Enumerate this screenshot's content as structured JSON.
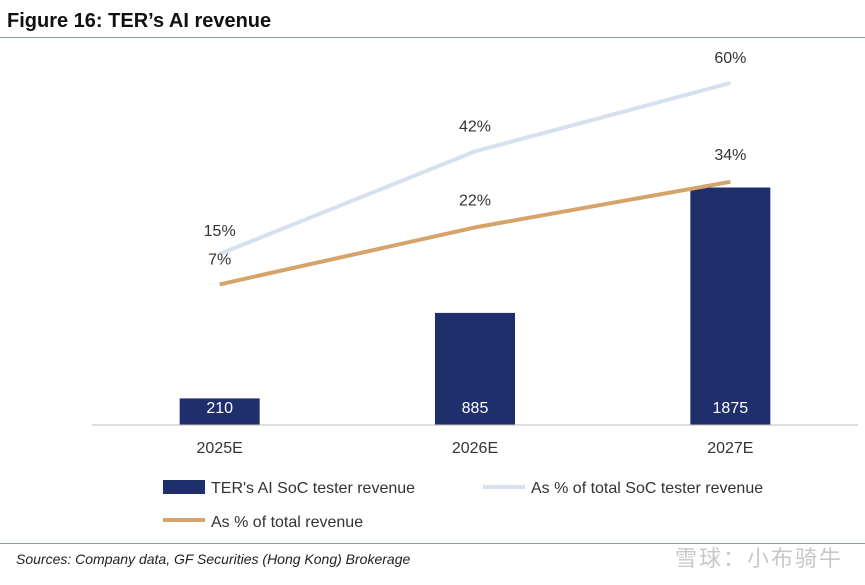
{
  "figure": {
    "title": "Figure 16: TER’s AI revenue",
    "source": "Sources: Company data, GF Securities (Hong Kong) Brokerage",
    "watermark": "雪球：小布骑牛"
  },
  "colors": {
    "bar": "#1f2f6b",
    "line_soc": "#d6e0ef",
    "line_total": "#d6a36a",
    "axis": "#bdbdbd"
  },
  "chart_data": {
    "type": "bar",
    "title": "Figure 16: TER’s AI revenue",
    "categories": [
      "2025E",
      "2026E",
      "2027E"
    ],
    "series": [
      {
        "name": "TER's AI SoC tester revenue",
        "type": "bar",
        "values": [
          210,
          885,
          1875
        ],
        "labels": [
          "210",
          "885",
          "1875"
        ]
      },
      {
        "name": "As % of total SoC tester revenue",
        "type": "line",
        "values": [
          15,
          42,
          60
        ],
        "labels": [
          "15%",
          "42%",
          "60%"
        ]
      },
      {
        "name": "As % of total revenue",
        "type": "line",
        "values": [
          7,
          22,
          34
        ],
        "labels": [
          "7%",
          "22%",
          "34%"
        ]
      }
    ],
    "bar_ylim": [
      0,
      3000
    ],
    "line_ylim": [
      -30,
      70
    ],
    "legend_position": "bottom",
    "grid": false
  }
}
